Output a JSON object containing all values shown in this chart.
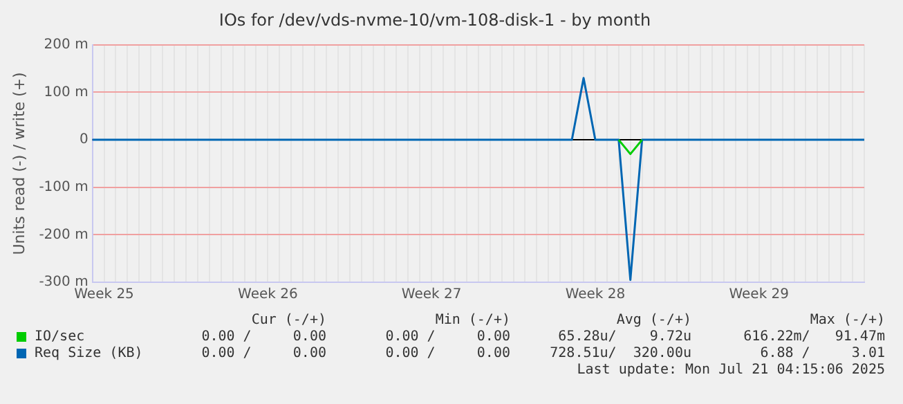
{
  "chart_data": {
    "type": "line",
    "title": "IOs for /dev/vds-nvme-10/vm-108-disk-1 - by month",
    "ylabel": "Units read (-) / write (+)",
    "categories": [
      null,
      "Week 25",
      null,
      null,
      null,
      null,
      null,
      null,
      null,
      null,
      null,
      null,
      null,
      null,
      null,
      "Week 26",
      null,
      null,
      null,
      null,
      null,
      null,
      null,
      null,
      null,
      null,
      null,
      null,
      null,
      "Week 27",
      null,
      null,
      null,
      null,
      null,
      null,
      null,
      null,
      null,
      null,
      null,
      null,
      null,
      "Week 28",
      null,
      null,
      null,
      null,
      null,
      null,
      null,
      null,
      null,
      null,
      null,
      null,
      null,
      "Week 29",
      null,
      null,
      null,
      null,
      null,
      null,
      null,
      null,
      null
    ],
    "ylim": [
      -300,
      200
    ],
    "yticks": [
      {
        "value": -300,
        "label": "-300 m"
      },
      {
        "value": -200,
        "label": "-200 m"
      },
      {
        "value": -100,
        "label": "-100 m"
      },
      {
        "value": 0,
        "label": "0"
      },
      {
        "value": 100,
        "label": "100 m"
      },
      {
        "value": 200,
        "label": "200 m"
      }
    ],
    "grid": true,
    "legend": "bottom left",
    "marker": "none",
    "line_style": "solid",
    "series": [
      {
        "name": "IO/sec",
        "color": "#00cc00",
        "values": [
          null,
          null,
          null,
          null,
          null,
          null,
          null,
          null,
          null,
          null,
          null,
          null,
          null,
          null,
          null,
          null,
          null,
          null,
          null,
          null,
          null,
          null,
          null,
          null,
          null,
          null,
          null,
          null,
          null,
          null,
          null,
          null,
          null,
          null,
          null,
          null,
          null,
          null,
          null,
          null,
          null,
          null,
          null,
          null,
          null,
          0,
          -30,
          0,
          null,
          null,
          null,
          null,
          null,
          null,
          null,
          null,
          null,
          null,
          null,
          null,
          null,
          null,
          null,
          null,
          null,
          null,
          null
        ]
      },
      {
        "name": "Req Size (KB)",
        "color": "#0066b3",
        "values": [
          0,
          0,
          0,
          0,
          0,
          0,
          0,
          0,
          0,
          0,
          0,
          0,
          0,
          0,
          0,
          0,
          0,
          0,
          0,
          0,
          0,
          0,
          0,
          0,
          0,
          0,
          0,
          0,
          0,
          0,
          0,
          0,
          0,
          0,
          0,
          0,
          0,
          0,
          0,
          0,
          0,
          0,
          130,
          0,
          0,
          0,
          -295,
          0,
          0,
          0,
          0,
          0,
          0,
          0,
          0,
          0,
          0,
          0,
          0,
          0,
          0,
          0,
          0,
          0,
          0,
          0,
          0
        ]
      }
    ],
    "annotations": [
      "Cur (-/+)",
      "Min (-/+)",
      "Avg (-/+)",
      "Max (-/+)",
      "0.00 /     0.00",
      "0.00 /     0.00",
      "65.28u/    9.72u",
      "616.22m/   91.47m",
      "0.00 /     0.00",
      "0.00 /     0.00",
      "728.51u/  320.00u",
      "6.88 /     3.01",
      "Last update: Mon Jul 21 04:15:06 2025"
    ]
  }
}
